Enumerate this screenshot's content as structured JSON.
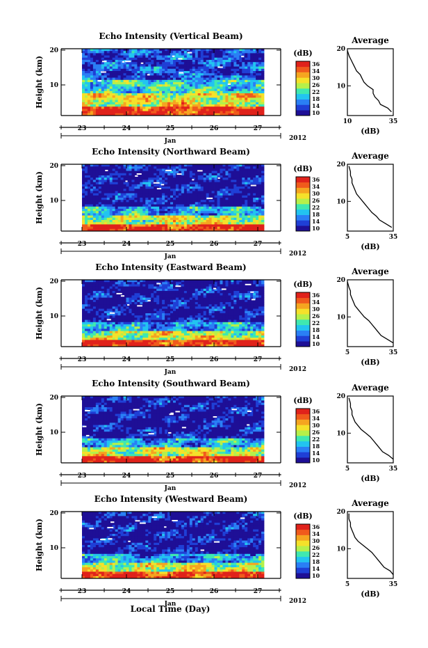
{
  "figure": {
    "xlabel": "Local Time (Day)",
    "month": "Jan",
    "year": "2012",
    "colorbar_unit": "(dB)",
    "colorbar_ticks": [
      "36",
      "34",
      "30",
      "26",
      "22",
      "18",
      "14",
      "10"
    ],
    "colorbar_colors": [
      "#1e0f96",
      "#1f3fd6",
      "#2a7ff5",
      "#22c4f0",
      "#3fe8b0",
      "#b6f04a",
      "#f5e12a",
      "#f5a520",
      "#f05a1c",
      "#e0221b"
    ],
    "average_title": "Average",
    "average_xlabel": "(dB)"
  },
  "chart_data": [
    {
      "type": "heatmap",
      "title": "Echo Intensity (Vertical Beam)",
      "ylabel": "Height (km)",
      "x_ticks": [
        "23",
        "24",
        "25",
        "26",
        "27"
      ],
      "y_ticks": [
        "20",
        "10"
      ],
      "ylim": [
        2,
        20
      ],
      "color_scale": [
        10,
        38
      ],
      "average_profile": {
        "title": "Average",
        "xlabel": "(dB)",
        "x_ticks": [
          "10",
          "35"
        ],
        "y_ticks": [
          "20",
          "10"
        ],
        "xlim": [
          10,
          35
        ],
        "height": [
          19.5,
          18,
          17,
          16,
          15,
          14,
          13,
          12,
          11,
          10,
          9,
          8,
          7,
          6,
          5,
          4,
          3
        ],
        "db": [
          10,
          11,
          12,
          13,
          14,
          15,
          17,
          18,
          19,
          21,
          24,
          24,
          25,
          27,
          28,
          32,
          34
        ]
      }
    },
    {
      "type": "heatmap",
      "title": "Echo Intensity (Northward Beam)",
      "ylabel": "Height (km)",
      "x_ticks": [
        "23",
        "24",
        "25",
        "26",
        "27"
      ],
      "y_ticks": [
        "20",
        "10"
      ],
      "ylim": [
        2,
        20
      ],
      "color_scale": [
        10,
        38
      ],
      "average_profile": {
        "title": "Average",
        "xlabel": "(dB)",
        "x_ticks": [
          "5",
          "35"
        ],
        "y_ticks": [
          "20",
          "10"
        ],
        "xlim": [
          5,
          35
        ],
        "height": [
          19.5,
          18,
          17,
          16,
          15,
          14,
          13,
          12,
          11,
          10,
          9,
          8,
          7,
          6,
          5,
          4,
          3
        ],
        "db": [
          6,
          7,
          7,
          8,
          8,
          9,
          10,
          11,
          13,
          15,
          17,
          19,
          21,
          24,
          26,
          30,
          34
        ]
      }
    },
    {
      "type": "heatmap",
      "title": "Echo Intensity (Eastward Beam)",
      "ylabel": "Height (km)",
      "x_ticks": [
        "23",
        "24",
        "25",
        "26",
        "27"
      ],
      "y_ticks": [
        "20",
        "10"
      ],
      "ylim": [
        2,
        20
      ],
      "color_scale": [
        10,
        38
      ],
      "average_profile": {
        "title": "Average",
        "xlabel": "(dB)",
        "x_ticks": [
          "5",
          "35"
        ],
        "y_ticks": [
          "20",
          "10"
        ],
        "xlim": [
          5,
          35
        ],
        "height": [
          19.5,
          18,
          17,
          16,
          15,
          14,
          13,
          12,
          11,
          10,
          9,
          8,
          7,
          6,
          5,
          4,
          3
        ],
        "db": [
          5,
          6,
          7,
          7,
          8,
          9,
          10,
          12,
          14,
          16,
          19,
          21,
          23,
          25,
          27,
          31,
          35
        ]
      }
    },
    {
      "type": "heatmap",
      "title": "Echo Intensity (Southward Beam)",
      "ylabel": "Height (km)",
      "x_ticks": [
        "23",
        "24",
        "25",
        "26",
        "27"
      ],
      "y_ticks": [
        "20",
        "10"
      ],
      "ylim": [
        2,
        20
      ],
      "color_scale": [
        10,
        38
      ],
      "average_profile": {
        "title": "Average",
        "xlabel": "(dB)",
        "x_ticks": [
          "5",
          "35"
        ],
        "y_ticks": [
          "20",
          "10"
        ],
        "xlim": [
          5,
          35
        ],
        "height": [
          19.5,
          18,
          17,
          16,
          15,
          14,
          13,
          12,
          11,
          10,
          9,
          8,
          7,
          6,
          5,
          4,
          3
        ],
        "db": [
          6,
          7,
          7,
          8,
          8,
          9,
          10,
          12,
          14,
          17,
          20,
          22,
          24,
          26,
          28,
          32,
          35
        ]
      }
    },
    {
      "type": "heatmap",
      "title": "Echo Intensity (Westward Beam)",
      "ylabel": "Height (km)",
      "x_ticks": [
        "23",
        "24",
        "25",
        "26",
        "27"
      ],
      "y_ticks": [
        "20",
        "10"
      ],
      "ylim": [
        2,
        20
      ],
      "color_scale": [
        10,
        38
      ],
      "average_profile": {
        "title": "Average",
        "xlabel": "(dB)",
        "x_ticks": [
          "5",
          "35"
        ],
        "y_ticks": [
          "20",
          "10"
        ],
        "xlim": [
          5,
          35
        ],
        "height": [
          19.5,
          18,
          17,
          16,
          15,
          14,
          13,
          12,
          11,
          10,
          9,
          8,
          7,
          6,
          5,
          4,
          3
        ],
        "db": [
          6,
          6,
          7,
          7,
          8,
          9,
          10,
          12,
          15,
          18,
          21,
          23,
          25,
          27,
          29,
          33,
          35
        ]
      }
    }
  ]
}
